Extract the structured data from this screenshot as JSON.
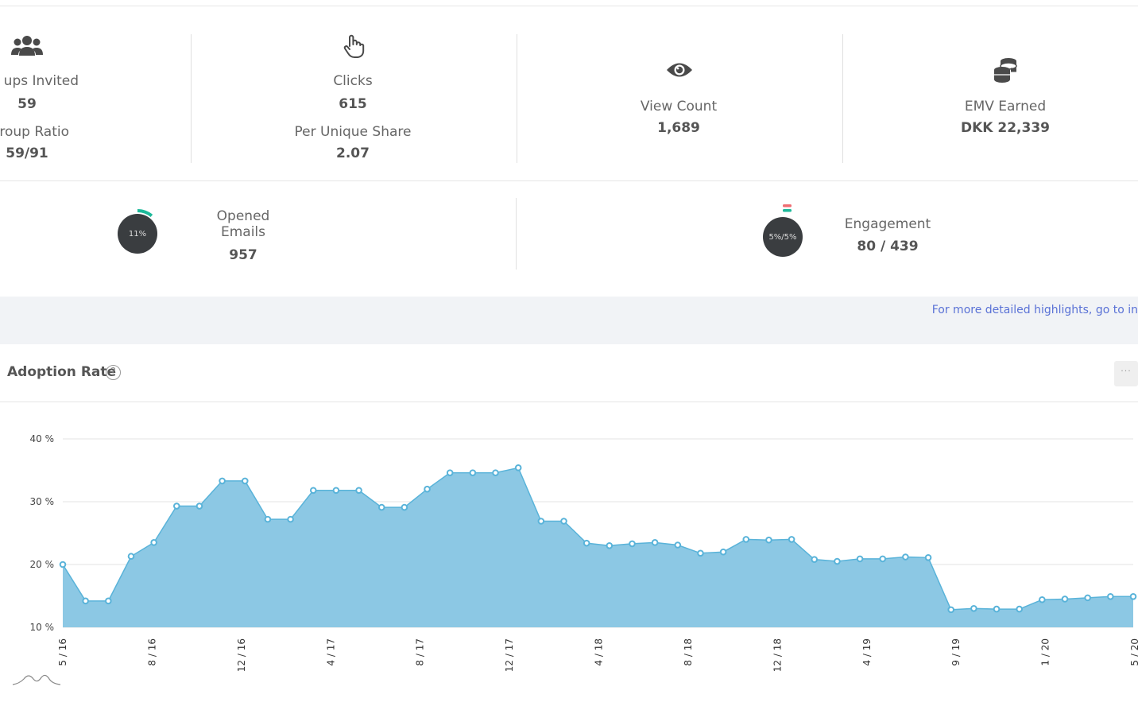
{
  "stats_top": {
    "groups_invited_label": "ups Invited",
    "groups_invited_value": "59",
    "group_ratio_label": "roup Ratio",
    "group_ratio_value": "59/91",
    "clicks_label": "Clicks",
    "clicks_value": "615",
    "per_unique_share_label": "Per Unique Share",
    "per_unique_share_value": "2.07",
    "view_count_label": "View Count",
    "view_count_value": "1,689",
    "emv_label": "EMV Earned",
    "emv_value": "DKK 22,339"
  },
  "icons": {
    "groups": "users-icon",
    "clicks": "hand-pointer-icon",
    "views": "eye-icon",
    "emv": "coins-icon"
  },
  "stats_bottom": {
    "opened_emails_label_line1": "Opened",
    "opened_emails_label_line2": "Emails",
    "opened_emails_value": "957",
    "opened_dial_text": "11%",
    "opened_dial_fraction": 0.11,
    "engagement_label": "Engagement",
    "engagement_value": "80 / 439",
    "engagement_dial_text": "5%/5%",
    "engagement_dial_fraction": 0.05
  },
  "banner": {
    "link_text": "For more detailed highlights, go to in"
  },
  "adoption_card": {
    "title": "Adoption Rate",
    "help_glyph": "?",
    "menu_glyph": "···"
  },
  "colors": {
    "area_fill": "#8cc8e4",
    "area_line": "#59b3d9",
    "dial_green": "#1db99a",
    "dial_red": "#ef6e73",
    "link": "#5a72d6"
  },
  "chart_data": {
    "type": "area",
    "title": "Adoption Rate",
    "y_unit": "%",
    "ylim": [
      10,
      40
    ],
    "y_ticks": [
      "10 %",
      "20 %",
      "30 %",
      "40 %"
    ],
    "x_tick_labels": [
      "5 / 16",
      "8 / 16",
      "12 / 16",
      "4 / 17",
      "8 / 17",
      "12 / 17",
      "4 / 18",
      "8 / 18",
      "12 / 18",
      "4 / 19",
      "9 / 19",
      "1 / 20",
      "5 / 20"
    ],
    "grid": true,
    "series": [
      {
        "values": [
          20,
          14.2,
          14.2,
          21.3,
          23.5,
          29.3,
          29.3,
          33.3,
          33.3,
          27.2,
          27.2,
          31.8,
          31.8,
          31.8,
          29.1,
          29.1,
          32,
          34.6,
          34.6,
          34.6,
          35.4,
          26.9,
          26.9,
          23.4,
          23,
          23.3,
          23.5,
          23.1,
          21.8,
          22,
          24,
          23.9,
          24,
          20.8,
          20.5,
          20.9,
          20.9,
          21.2,
          21.1,
          12.8,
          13,
          12.9,
          12.9,
          14.4,
          14.5,
          14.7,
          14.9,
          14.9
        ]
      }
    ]
  }
}
